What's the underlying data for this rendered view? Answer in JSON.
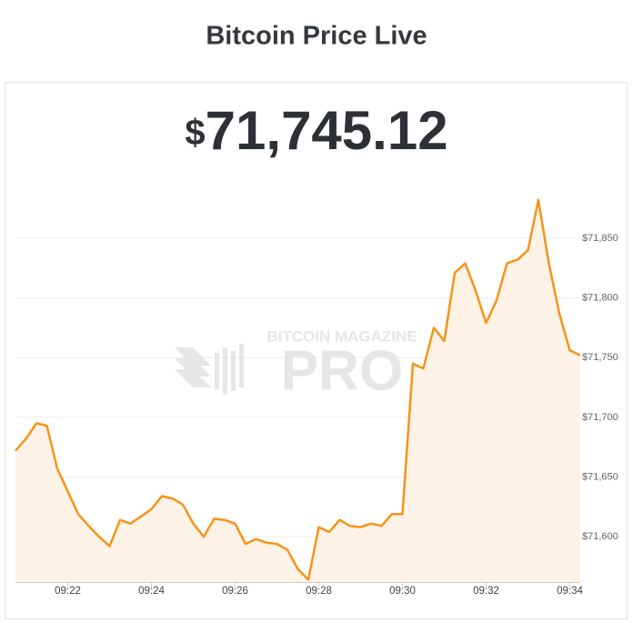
{
  "chart_data": {
    "type": "area",
    "title": "Bitcoin Price Live",
    "price_currency": "$",
    "price": "71,745.12",
    "watermark": [
      "BITCOIN MAGAZINE",
      "PRO"
    ],
    "categories": [
      null,
      null,
      null,
      null,
      null,
      "09:22",
      null,
      null,
      null,
      null,
      null,
      null,
      null,
      "09:24",
      null,
      null,
      null,
      null,
      null,
      null,
      null,
      "09:26",
      null,
      null,
      null,
      null,
      null,
      null,
      null,
      "09:28",
      null,
      null,
      null,
      null,
      null,
      null,
      null,
      "09:30",
      null,
      null,
      null,
      null,
      null,
      null,
      null,
      "09:32",
      null,
      null,
      null,
      null,
      null,
      null,
      null,
      "09:34",
      null
    ],
    "values": [
      71672,
      71682,
      71695,
      71693,
      71657,
      71638,
      71619,
      71609,
      71600,
      71592,
      71614,
      71611,
      71617,
      71623,
      71634,
      71632,
      71627,
      71611,
      71600,
      71615,
      71614,
      71611,
      71594,
      71598,
      71595,
      71594,
      71589,
      71573,
      71564,
      71608,
      71604,
      71614,
      71609,
      71608,
      71611,
      71609,
      71619,
      71619,
      71745,
      71741,
      71775,
      71764,
      71821,
      71829,
      71806,
      71779,
      71798,
      71829,
      71832,
      71840,
      71882,
      71829,
      71787,
      71756,
      71752
    ],
    "color": "#f7931a",
    "fill": "#fdf2e6",
    "ylim": [
      71562,
      71901
    ],
    "yticks": [
      {
        "value": 71600,
        "label": "$71,600"
      },
      {
        "value": 71650,
        "label": "$71,650"
      },
      {
        "value": 71700,
        "label": "$71,700"
      },
      {
        "value": 71750,
        "label": "$71,750"
      },
      {
        "value": 71800,
        "label": "$71,800"
      },
      {
        "value": 71850,
        "label": "$71,850"
      }
    ],
    "grid": true
  }
}
